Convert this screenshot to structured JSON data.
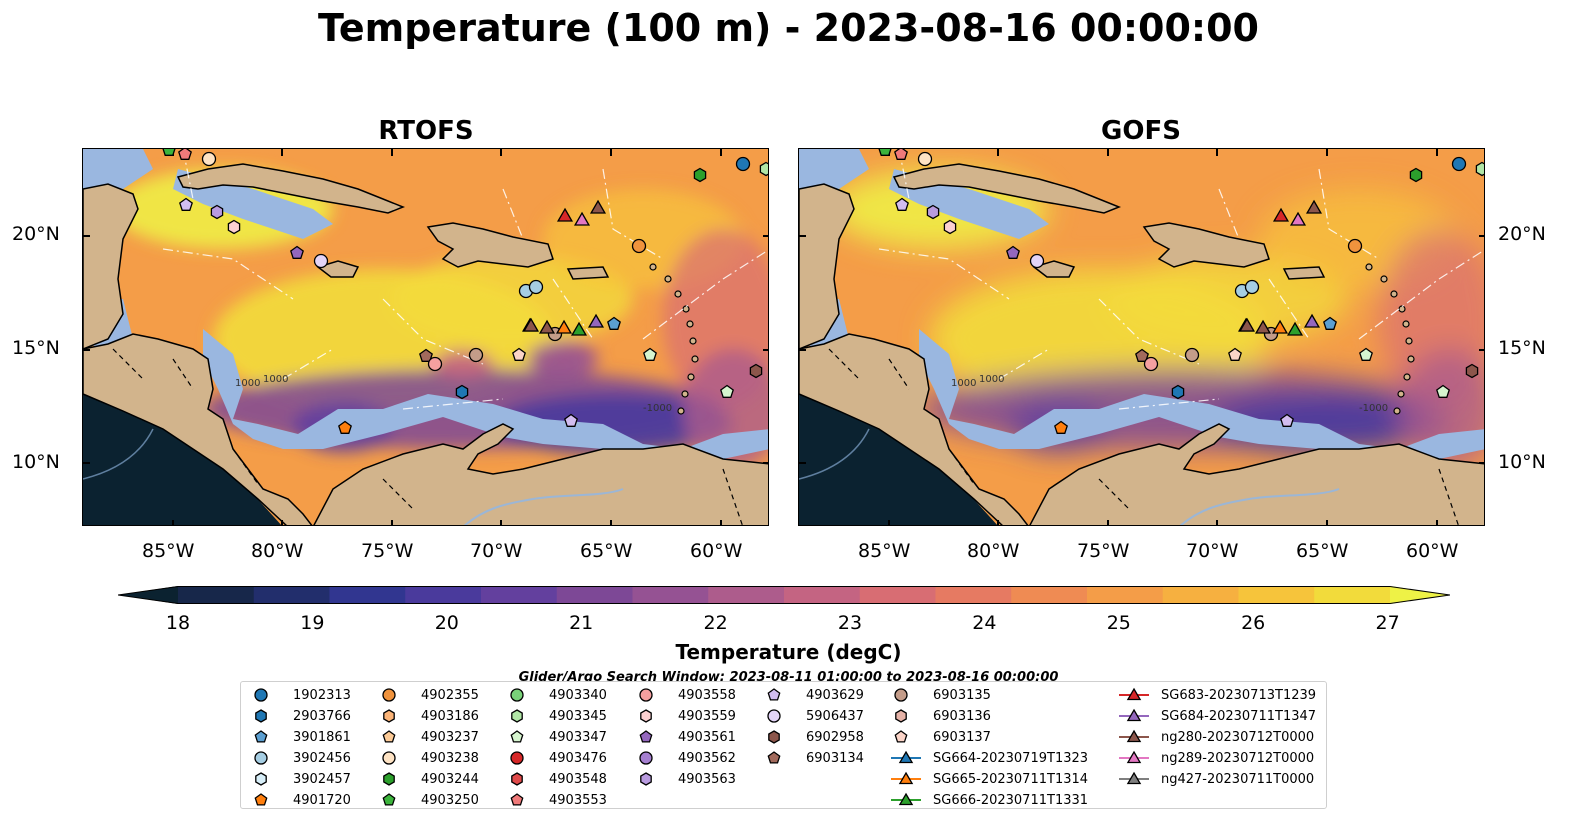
{
  "title": "Temperature (100 m) - 2023-08-16 00:00:00",
  "panels": [
    {
      "name": "RTOFS"
    },
    {
      "name": "GOFS"
    }
  ],
  "axes": {
    "lat_labels": [
      "20°N",
      "15°N",
      "10°N"
    ],
    "lon_labels": [
      "85°W",
      "80°W",
      "75°W",
      "70°W",
      "65°W",
      "60°W"
    ]
  },
  "colorbar": {
    "title": "Temperature (degC)",
    "ticks": [
      "18",
      "19",
      "20",
      "21",
      "22",
      "23",
      "24",
      "25",
      "26",
      "27"
    ],
    "colors": [
      "#0b2230",
      "#17274a",
      "#222e6c",
      "#313690",
      "#4a3a9c",
      "#63409e",
      "#7d4896",
      "#955293",
      "#ad5c8c",
      "#c46482",
      "#d86d73",
      "#e67a62",
      "#ef8b53",
      "#f49d48",
      "#f6b040",
      "#f6c43b",
      "#f2db3b",
      "#eef246"
    ]
  },
  "search_window": "Glider/Argo Search Window: 2023-08-11 01:00:00 to 2023-08-16 00:00:00",
  "colors": {
    "land": "#d2b48c",
    "shelf": "#9ab7e0",
    "deep_ocean": "#0b2230",
    "river": "#9bb6d6"
  },
  "legend": [
    {
      "label": "1902313",
      "marker": "circle",
      "color": "#1f77b4"
    },
    {
      "label": "2903766",
      "marker": "hexagon",
      "color": "#1f77b4"
    },
    {
      "label": "3901861",
      "marker": "pentagon",
      "color": "#5b9fd1"
    },
    {
      "label": "3902456",
      "marker": "circle",
      "color": "#a6cee3"
    },
    {
      "label": "3902457",
      "marker": "hexagon",
      "color": "#d7eef8"
    },
    {
      "label": "4901720",
      "marker": "pentagon",
      "color": "#ff7f0e"
    },
    {
      "label": "4902355",
      "marker": "circle",
      "color": "#f0933d"
    },
    {
      "label": "4903186",
      "marker": "hexagon",
      "color": "#fbb478"
    },
    {
      "label": "4903237",
      "marker": "pentagon",
      "color": "#fdcb97"
    },
    {
      "label": "4903238",
      "marker": "circle",
      "color": "#fee3c4"
    },
    {
      "label": "4903244",
      "marker": "hexagon",
      "color": "#2ca02c"
    },
    {
      "label": "4903250",
      "marker": "pentagon",
      "color": "#3cb43c"
    },
    {
      "label": "4903340",
      "marker": "circle",
      "color": "#79d279"
    },
    {
      "label": "4903345",
      "marker": "hexagon",
      "color": "#b1e6a6"
    },
    {
      "label": "4903347",
      "marker": "pentagon",
      "color": "#d6f5cf"
    },
    {
      "label": "4903476",
      "marker": "circle",
      "color": "#d62728"
    },
    {
      "label": "4903548",
      "marker": "hexagon",
      "color": "#e04a4a"
    },
    {
      "label": "4903553",
      "marker": "pentagon",
      "color": "#f07a7a"
    },
    {
      "label": "4903558",
      "marker": "circle",
      "color": "#f5a0a0"
    },
    {
      "label": "4903559",
      "marker": "hexagon",
      "color": "#fcd0d0"
    },
    {
      "label": "4903561",
      "marker": "pentagon",
      "color": "#9467bd"
    },
    {
      "label": "4903562",
      "marker": "circle",
      "color": "#a57fd0"
    },
    {
      "label": "4903563",
      "marker": "hexagon",
      "color": "#b99be0"
    },
    {
      "label": "4903629",
      "marker": "pentagon",
      "color": "#d2bdf0"
    },
    {
      "label": "5906437",
      "marker": "circle",
      "color": "#e3d4f7"
    },
    {
      "label": "6902958",
      "marker": "hexagon",
      "color": "#8c564b"
    },
    {
      "label": "6903134",
      "marker": "pentagon",
      "color": "#a26a5c"
    },
    {
      "label": "6903135",
      "marker": "circle",
      "color": "#c49c89"
    },
    {
      "label": "6903136",
      "marker": "hexagon",
      "color": "#e6b3a8"
    },
    {
      "label": "6903137",
      "marker": "pentagon",
      "color": "#fbd4c8"
    },
    {
      "label": "SG664-20230719T1323",
      "marker": "triangle-line",
      "color": "#1f77b4"
    },
    {
      "label": "SG665-20230711T1314",
      "marker": "triangle-line",
      "color": "#ff7f0e"
    },
    {
      "label": "SG666-20230711T1331",
      "marker": "triangle-line",
      "color": "#2ca02c"
    },
    {
      "label": "SG683-20230713T1239",
      "marker": "triangle-line",
      "color": "#d62728"
    },
    {
      "label": "SG684-20230711T1347",
      "marker": "triangle-line",
      "color": "#9467bd"
    },
    {
      "label": "ng280-20230712T0000",
      "marker": "triangle-line",
      "color": "#8c564b"
    },
    {
      "label": "ng289-20230712T0000",
      "marker": "triangle-line",
      "color": "#e377c2"
    },
    {
      "label": "ng427-20230711T0000",
      "marker": "triangle-line",
      "color": "#7f7f7f"
    }
  ]
}
